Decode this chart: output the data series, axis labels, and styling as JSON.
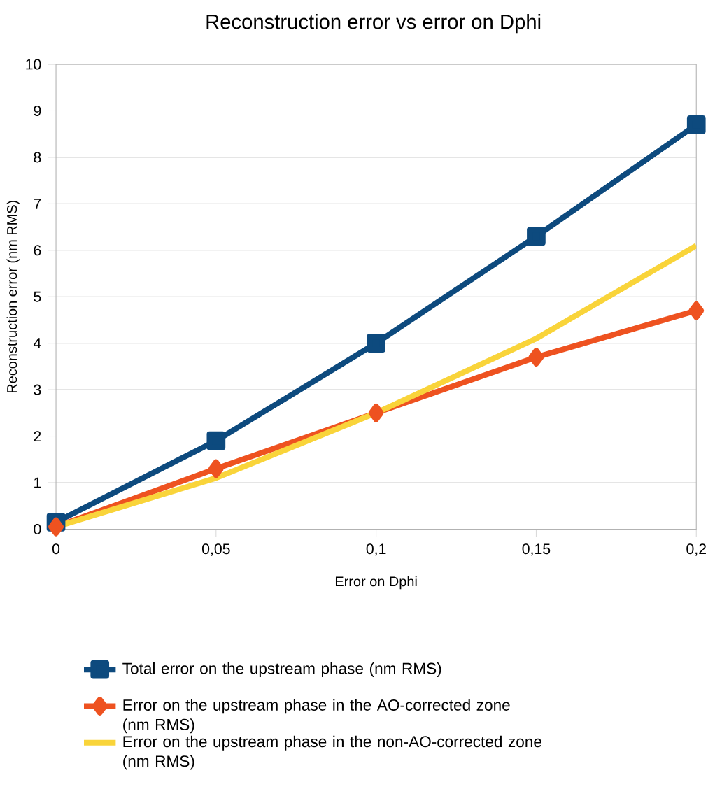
{
  "chart_data": {
    "type": "line",
    "title": "Reconstruction error vs error on Dphi",
    "xlabel": "Error on Dphi",
    "ylabel": "Reconstruction error (nm RMS)",
    "x": [
      0,
      0.05,
      0.1,
      0.15,
      0.2
    ],
    "series": [
      {
        "name": "Total error on the upstream phase (nm RMS)",
        "color": "#0d4a7e",
        "marker": "square",
        "values": [
          0.15,
          1.9,
          4.0,
          6.3,
          8.7
        ]
      },
      {
        "name": "Error on the upstream phase in the AO-corrected zone (nm RMS)",
        "color": "#ee5220",
        "marker": "diamond",
        "values": [
          0.05,
          1.3,
          2.5,
          3.7,
          4.7
        ]
      },
      {
        "name": "Error on the upstream phase in the non-AO-corrected zone (nm RMS)",
        "color": "#f9d43a",
        "marker": "none",
        "values": [
          0.05,
          1.1,
          2.5,
          4.1,
          6.1
        ]
      }
    ],
    "xlim": [
      0,
      0.2
    ],
    "xticks": [
      0,
      {
        "value": 0.05,
        "label": "0,05"
      },
      {
        "value": 0.1,
        "label": "0,1"
      },
      {
        "value": 0.15,
        "label": "0,15"
      },
      {
        "value": 0.2,
        "label": "0,2"
      }
    ],
    "ylim": [
      0,
      10
    ],
    "yticks": [
      0,
      1,
      2,
      3,
      4,
      5,
      6,
      7,
      8,
      9,
      10
    ],
    "grid": "y",
    "legend": "bottom",
    "line_style": "solid"
  }
}
